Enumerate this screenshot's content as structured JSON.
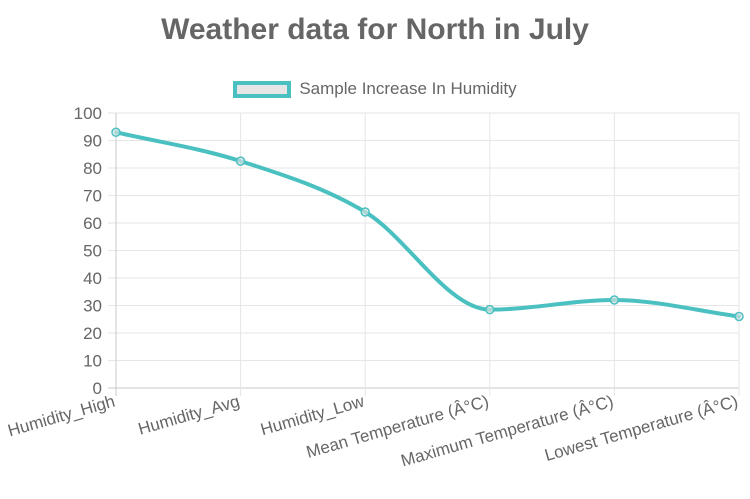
{
  "chart_data": {
    "type": "line",
    "title": "Weather data for North in July",
    "categories": [
      "Humidity_High",
      "Humidity_Avg",
      "Humidity_Low",
      "Mean Temperature (Â°C)",
      "Maximum Temperature (Â°C)",
      "Lowest Temperature (Â°C)"
    ],
    "series": [
      {
        "name": "Sample Increase In Humidity",
        "values": [
          93,
          82.5,
          64,
          28.5,
          32,
          26
        ],
        "color": "#4bc0c0",
        "fill": "#e6e6e6"
      }
    ],
    "ylim": [
      0,
      100
    ],
    "yticks": [
      0,
      10,
      20,
      30,
      40,
      50,
      60,
      70,
      80,
      90,
      100
    ],
    "grid": true,
    "legend_position": "top"
  }
}
